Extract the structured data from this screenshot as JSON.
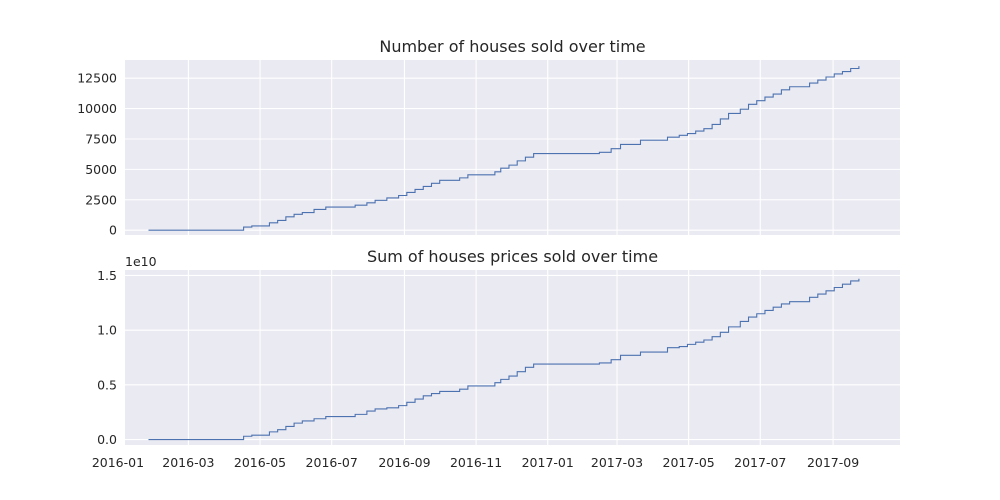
{
  "figure": {
    "background": "#ffffff",
    "plot_background": "#eaeaf2",
    "grid_color": "#ffffff",
    "line_color": "#4c72b0"
  },
  "chart_data": [
    {
      "type": "line",
      "title": "Number of houses sold over time",
      "xlabel": "",
      "ylabel": "",
      "grid": true,
      "x_axis": {
        "type": "date",
        "range": [
          "2016-01-07",
          "2017-10-28"
        ],
        "tick_labels_shown": false
      },
      "ylim": [
        -400,
        14000
      ],
      "yticks": [
        0,
        2500,
        5000,
        7500,
        10000,
        12500
      ],
      "ytick_labels": [
        "0",
        "2500",
        "5000",
        "7500",
        "10000",
        "12500"
      ],
      "step": true,
      "series": [
        {
          "points": [
            [
              "2016-01-27",
              0
            ],
            [
              "2016-04-17",
              0
            ],
            [
              "2016-04-17",
              250
            ],
            [
              "2016-04-24",
              250
            ],
            [
              "2016-04-24",
              350
            ],
            [
              "2016-05-09",
              350
            ],
            [
              "2016-05-09",
              600
            ],
            [
              "2016-05-16",
              600
            ],
            [
              "2016-05-16",
              800
            ],
            [
              "2016-05-23",
              800
            ],
            [
              "2016-05-23",
              1100
            ],
            [
              "2016-05-30",
              1100
            ],
            [
              "2016-05-30",
              1300
            ],
            [
              "2016-06-06",
              1300
            ],
            [
              "2016-06-06",
              1450
            ],
            [
              "2016-06-16",
              1450
            ],
            [
              "2016-06-16",
              1700
            ],
            [
              "2016-06-26",
              1700
            ],
            [
              "2016-06-26",
              1900
            ],
            [
              "2016-07-21",
              1900
            ],
            [
              "2016-07-21",
              2050
            ],
            [
              "2016-07-31",
              2050
            ],
            [
              "2016-07-31",
              2250
            ],
            [
              "2016-08-07",
              2250
            ],
            [
              "2016-08-07",
              2450
            ],
            [
              "2016-08-17",
              2450
            ],
            [
              "2016-08-17",
              2650
            ],
            [
              "2016-08-27",
              2650
            ],
            [
              "2016-08-27",
              2850
            ],
            [
              "2016-09-03",
              2850
            ],
            [
              "2016-09-03",
              3100
            ],
            [
              "2016-09-10",
              3100
            ],
            [
              "2016-09-10",
              3350
            ],
            [
              "2016-09-17",
              3350
            ],
            [
              "2016-09-17",
              3600
            ],
            [
              "2016-09-24",
              3600
            ],
            [
              "2016-09-24",
              3850
            ],
            [
              "2016-10-01",
              3850
            ],
            [
              "2016-10-01",
              4100
            ],
            [
              "2016-10-18",
              4100
            ],
            [
              "2016-10-18",
              4300
            ],
            [
              "2016-10-25",
              4300
            ],
            [
              "2016-10-25",
              4550
            ],
            [
              "2016-11-17",
              4550
            ],
            [
              "2016-11-17",
              4800
            ],
            [
              "2016-11-22",
              4800
            ],
            [
              "2016-11-22",
              5100
            ],
            [
              "2016-11-29",
              5100
            ],
            [
              "2016-11-29",
              5350
            ],
            [
              "2016-12-06",
              5350
            ],
            [
              "2016-12-06",
              5700
            ],
            [
              "2016-12-13",
              5700
            ],
            [
              "2016-12-13",
              6000
            ],
            [
              "2016-12-20",
              6000
            ],
            [
              "2016-12-20",
              6300
            ],
            [
              "2017-02-14",
              6300
            ],
            [
              "2017-02-14",
              6400
            ],
            [
              "2017-02-24",
              6400
            ],
            [
              "2017-02-24",
              6700
            ],
            [
              "2017-03-04",
              6700
            ],
            [
              "2017-03-04",
              7050
            ],
            [
              "2017-03-21",
              7050
            ],
            [
              "2017-03-21",
              7400
            ],
            [
              "2017-04-13",
              7400
            ],
            [
              "2017-04-13",
              7650
            ],
            [
              "2017-04-23",
              7650
            ],
            [
              "2017-04-23",
              7800
            ],
            [
              "2017-04-30",
              7800
            ],
            [
              "2017-04-30",
              7950
            ],
            [
              "2017-05-07",
              7950
            ],
            [
              "2017-05-07",
              8150
            ],
            [
              "2017-05-14",
              8150
            ],
            [
              "2017-05-14",
              8350
            ],
            [
              "2017-05-21",
              8350
            ],
            [
              "2017-05-21",
              8700
            ],
            [
              "2017-05-28",
              8700
            ],
            [
              "2017-05-28",
              9150
            ],
            [
              "2017-06-04",
              9150
            ],
            [
              "2017-06-04",
              9600
            ],
            [
              "2017-06-14",
              9600
            ],
            [
              "2017-06-14",
              9950
            ],
            [
              "2017-06-21",
              9950
            ],
            [
              "2017-06-21",
              10350
            ],
            [
              "2017-06-28",
              10350
            ],
            [
              "2017-06-28",
              10650
            ],
            [
              "2017-07-05",
              10650
            ],
            [
              "2017-07-05",
              10950
            ],
            [
              "2017-07-12",
              10950
            ],
            [
              "2017-07-12",
              11200
            ],
            [
              "2017-07-19",
              11200
            ],
            [
              "2017-07-19",
              11550
            ],
            [
              "2017-07-26",
              11550
            ],
            [
              "2017-07-26",
              11800
            ],
            [
              "2017-08-12",
              11800
            ],
            [
              "2017-08-12",
              12100
            ],
            [
              "2017-08-19",
              12100
            ],
            [
              "2017-08-19",
              12350
            ],
            [
              "2017-08-26",
              12350
            ],
            [
              "2017-08-26",
              12600
            ],
            [
              "2017-09-02",
              12600
            ],
            [
              "2017-09-02",
              12850
            ],
            [
              "2017-09-09",
              12850
            ],
            [
              "2017-09-09",
              13050
            ],
            [
              "2017-09-16",
              13050
            ],
            [
              "2017-09-16",
              13300
            ],
            [
              "2017-09-23",
              13300
            ],
            [
              "2017-09-23",
              13500
            ]
          ]
        }
      ]
    },
    {
      "type": "line",
      "title": "Sum of houses prices sold over time",
      "xlabel": "",
      "ylabel": "",
      "grid": true,
      "y_offset_label": "1e10",
      "x_axis": {
        "type": "date",
        "range": [
          "2016-01-07",
          "2017-10-28"
        ],
        "ticks": [
          "2016-01-01",
          "2016-03-01",
          "2016-05-01",
          "2016-07-01",
          "2016-09-01",
          "2016-11-01",
          "2017-01-01",
          "2017-03-01",
          "2017-05-01",
          "2017-07-01",
          "2017-09-01"
        ],
        "tick_labels": [
          "2016-01",
          "2016-03",
          "2016-05",
          "2016-07",
          "2016-09",
          "2016-11",
          "2017-01",
          "2017-03",
          "2017-05",
          "2017-07",
          "2017-09"
        ]
      },
      "ylim": [
        -0.05,
        1.55
      ],
      "yticks": [
        0.0,
        0.5,
        1.0,
        1.5
      ],
      "ytick_labels": [
        "0.0",
        "0.5",
        "1.0",
        "1.5"
      ],
      "step": true,
      "series": [
        {
          "points": [
            [
              "2016-01-27",
              0.0
            ],
            [
              "2016-04-17",
              0.0
            ],
            [
              "2016-04-17",
              0.03
            ],
            [
              "2016-04-24",
              0.03
            ],
            [
              "2016-04-24",
              0.04
            ],
            [
              "2016-05-09",
              0.04
            ],
            [
              "2016-05-09",
              0.07
            ],
            [
              "2016-05-16",
              0.07
            ],
            [
              "2016-05-16",
              0.09
            ],
            [
              "2016-05-23",
              0.09
            ],
            [
              "2016-05-23",
              0.12
            ],
            [
              "2016-05-30",
              0.12
            ],
            [
              "2016-05-30",
              0.15
            ],
            [
              "2016-06-06",
              0.15
            ],
            [
              "2016-06-06",
              0.17
            ],
            [
              "2016-06-16",
              0.17
            ],
            [
              "2016-06-16",
              0.19
            ],
            [
              "2016-06-26",
              0.19
            ],
            [
              "2016-06-26",
              0.21
            ],
            [
              "2016-07-21",
              0.21
            ],
            [
              "2016-07-21",
              0.23
            ],
            [
              "2016-07-31",
              0.23
            ],
            [
              "2016-07-31",
              0.26
            ],
            [
              "2016-08-07",
              0.26
            ],
            [
              "2016-08-07",
              0.28
            ],
            [
              "2016-08-17",
              0.28
            ],
            [
              "2016-08-17",
              0.29
            ],
            [
              "2016-08-27",
              0.29
            ],
            [
              "2016-08-27",
              0.31
            ],
            [
              "2016-09-03",
              0.31
            ],
            [
              "2016-09-03",
              0.34
            ],
            [
              "2016-09-10",
              0.34
            ],
            [
              "2016-09-10",
              0.37
            ],
            [
              "2016-09-17",
              0.37
            ],
            [
              "2016-09-17",
              0.4
            ],
            [
              "2016-09-24",
              0.4
            ],
            [
              "2016-09-24",
              0.42
            ],
            [
              "2016-10-01",
              0.42
            ],
            [
              "2016-10-01",
              0.44
            ],
            [
              "2016-10-18",
              0.44
            ],
            [
              "2016-10-18",
              0.46
            ],
            [
              "2016-10-25",
              0.46
            ],
            [
              "2016-10-25",
              0.49
            ],
            [
              "2016-11-17",
              0.49
            ],
            [
              "2016-11-17",
              0.52
            ],
            [
              "2016-11-22",
              0.52
            ],
            [
              "2016-11-22",
              0.55
            ],
            [
              "2016-11-29",
              0.55
            ],
            [
              "2016-11-29",
              0.58
            ],
            [
              "2016-12-06",
              0.58
            ],
            [
              "2016-12-06",
              0.62
            ],
            [
              "2016-12-13",
              0.62
            ],
            [
              "2016-12-13",
              0.66
            ],
            [
              "2016-12-20",
              0.66
            ],
            [
              "2016-12-20",
              0.69
            ],
            [
              "2017-02-14",
              0.69
            ],
            [
              "2017-02-14",
              0.7
            ],
            [
              "2017-02-24",
              0.7
            ],
            [
              "2017-02-24",
              0.73
            ],
            [
              "2017-03-04",
              0.73
            ],
            [
              "2017-03-04",
              0.77
            ],
            [
              "2017-03-21",
              0.77
            ],
            [
              "2017-03-21",
              0.8
            ],
            [
              "2017-04-13",
              0.8
            ],
            [
              "2017-04-13",
              0.84
            ],
            [
              "2017-04-23",
              0.84
            ],
            [
              "2017-04-23",
              0.85
            ],
            [
              "2017-04-30",
              0.85
            ],
            [
              "2017-04-30",
              0.87
            ],
            [
              "2017-05-07",
              0.87
            ],
            [
              "2017-05-07",
              0.89
            ],
            [
              "2017-05-14",
              0.89
            ],
            [
              "2017-05-14",
              0.91
            ],
            [
              "2017-05-21",
              0.91
            ],
            [
              "2017-05-21",
              0.94
            ],
            [
              "2017-05-28",
              0.94
            ],
            [
              "2017-05-28",
              0.98
            ],
            [
              "2017-06-04",
              0.98
            ],
            [
              "2017-06-04",
              1.03
            ],
            [
              "2017-06-14",
              1.03
            ],
            [
              "2017-06-14",
              1.08
            ],
            [
              "2017-06-21",
              1.08
            ],
            [
              "2017-06-21",
              1.12
            ],
            [
              "2017-06-28",
              1.12
            ],
            [
              "2017-06-28",
              1.15
            ],
            [
              "2017-07-05",
              1.15
            ],
            [
              "2017-07-05",
              1.18
            ],
            [
              "2017-07-12",
              1.18
            ],
            [
              "2017-07-12",
              1.21
            ],
            [
              "2017-07-19",
              1.21
            ],
            [
              "2017-07-19",
              1.24
            ],
            [
              "2017-07-26",
              1.24
            ],
            [
              "2017-07-26",
              1.26
            ],
            [
              "2017-08-12",
              1.26
            ],
            [
              "2017-08-12",
              1.3
            ],
            [
              "2017-08-19",
              1.3
            ],
            [
              "2017-08-19",
              1.33
            ],
            [
              "2017-08-26",
              1.33
            ],
            [
              "2017-08-26",
              1.36
            ],
            [
              "2017-09-02",
              1.36
            ],
            [
              "2017-09-02",
              1.39
            ],
            [
              "2017-09-09",
              1.39
            ],
            [
              "2017-09-09",
              1.42
            ],
            [
              "2017-09-16",
              1.42
            ],
            [
              "2017-09-16",
              1.45
            ],
            [
              "2017-09-23",
              1.45
            ],
            [
              "2017-09-23",
              1.47
            ]
          ]
        }
      ]
    }
  ]
}
